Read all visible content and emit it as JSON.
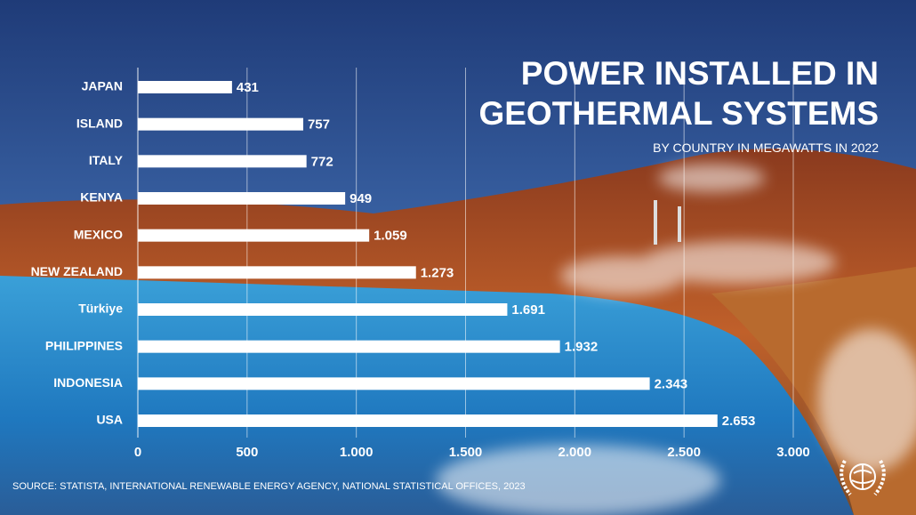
{
  "chart_data": {
    "type": "bar",
    "orientation": "horizontal",
    "title": "POWER INSTALLED IN GEOTHERMAL SYSTEMS",
    "subtitle": "BY COUNTRY IN MEGAWATTS IN 2022",
    "source": "SOURCE: STATISTA, INTERNATIONAL RENEWABLE ENERGY AGENCY, NATIONAL STATISTICAL OFFICES, 2023",
    "categories": [
      "JAPAN",
      "ISLAND",
      "ITALY",
      "KENYA",
      "MEXICO",
      "NEW ZEALAND",
      "Türkiye",
      "PHILIPPINES",
      "INDONESIA",
      "USA"
    ],
    "values": [
      431,
      757,
      772,
      949,
      1059,
      1273,
      1691,
      1932,
      2343,
      2653
    ],
    "value_labels": [
      "431",
      "757",
      "772",
      "949",
      "1.059",
      "1.273",
      "1.691",
      "1.932",
      "2.343",
      "2.653"
    ],
    "color": "#ffffff",
    "xlim": [
      0,
      3000
    ],
    "xticks": [
      0,
      500,
      {
        "value": 1000,
        "label": "1.000"
      },
      {
        "value": 1500,
        "label": "1.500"
      },
      {
        "value": 2000,
        "label": "2.000"
      },
      {
        "value": 2500,
        "label": "2.500"
      },
      {
        "value": 3000,
        "label": "3.000"
      }
    ],
    "grid": true
  }
}
